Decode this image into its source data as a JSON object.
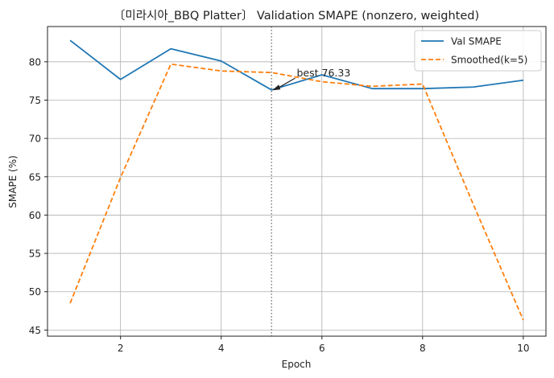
{
  "chart_data": {
    "type": "line",
    "title": "〔미라시아_BBQ Platter〕 Validation SMAPE (nonzero, weighted)",
    "xlabel": "Epoch",
    "ylabel": "SMAPE (%)",
    "xlim": [
      0.55,
      10.45
    ],
    "ylim": [
      44.2,
      84.6
    ],
    "xticks": [
      2,
      4,
      6,
      8,
      10
    ],
    "yticks": [
      45,
      50,
      55,
      60,
      65,
      70,
      75,
      80
    ],
    "grid": true,
    "legend_position": "top-right",
    "x": [
      1,
      2,
      3,
      4,
      5,
      6,
      7,
      8,
      9,
      10
    ],
    "series": [
      {
        "name": "Val SMAPE",
        "color": "#1f77b4",
        "style": "solid",
        "values": [
          82.8,
          77.7,
          81.7,
          80.1,
          76.33,
          78.3,
          76.5,
          76.5,
          76.7,
          77.6
        ]
      },
      {
        "name": "Smoothed(k=5)",
        "color": "#ff7f0e",
        "style": "dashed",
        "values": [
          48.5,
          64.9,
          79.7,
          78.8,
          78.6,
          77.4,
          76.8,
          77.1,
          61.5,
          46.3
        ]
      }
    ],
    "best_marker": {
      "x": 5,
      "y": 76.33,
      "label": "best 76.33",
      "label_x": 5.5,
      "label_y": 78.5
    }
  }
}
